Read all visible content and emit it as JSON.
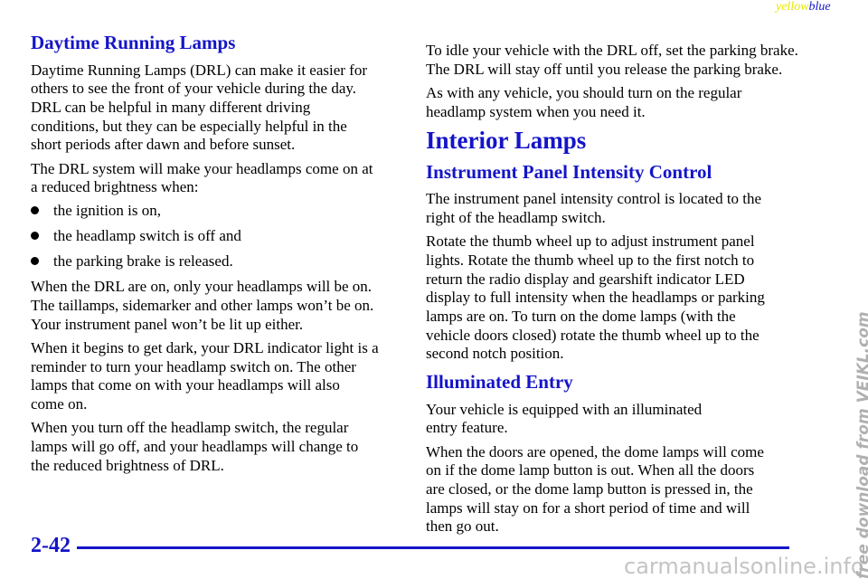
{
  "header": {
    "word_1": "yellow",
    "word_2": "blue"
  },
  "left": [
    {
      "kind": "h2",
      "text": "Daytime Running Lamps"
    },
    {
      "kind": "p",
      "lines": [
        "Daytime Running Lamps (DRL) can make it easier for",
        "others to see the front of your vehicle during the day.",
        "DRL can be helpful in many different driving",
        "conditions, but they can be especially helpful in the",
        "short periods after dawn and before sunset."
      ]
    },
    {
      "kind": "p",
      "lines": [
        "The DRL system will make your headlamps come on at",
        "a reduced brightness when:"
      ]
    },
    {
      "kind": "bullet",
      "lines": [
        "the ignition is on,"
      ]
    },
    {
      "kind": "bullet",
      "lines": [
        "the headlamp switch is off and"
      ]
    },
    {
      "kind": "bullet",
      "lines": [
        "the parking brake is released."
      ]
    },
    {
      "kind": "p",
      "lines": [
        "When the DRL are on, only your headlamps will be on.",
        "The taillamps, sidemarker and other lamps won’t be on.",
        "Your instrument panel won’t be lit up either."
      ]
    },
    {
      "kind": "p",
      "lines": [
        "When it begins to get dark, your DRL indicator light is a",
        "reminder to turn your headlamp switch on. The other",
        "lamps that come on with your headlamps will also",
        "come on."
      ]
    },
    {
      "kind": "p",
      "lines": [
        "When you turn off the headlamp switch, the regular",
        "lamps will go off, and your headlamps will change to",
        "the reduced brightness of DRL."
      ]
    }
  ],
  "right": [
    {
      "kind": "p",
      "lines": [
        "To idle your vehicle with the DRL off, set the parking brake.",
        "The DRL will stay off until you release the parking brake."
      ]
    },
    {
      "kind": "p",
      "lines": [
        "As with any vehicle, you should turn on the regular",
        "headlamp system when you need it."
      ]
    },
    {
      "kind": "h1",
      "text": "Interior Lamps"
    },
    {
      "kind": "h2",
      "text": "Instrument Panel Intensity Control"
    },
    {
      "kind": "p",
      "lines": [
        "The instrument panel intensity control is located to the",
        "right of the headlamp switch."
      ]
    },
    {
      "kind": "p",
      "lines": [
        "Rotate the thumb wheel up to adjust instrument panel",
        "lights. Rotate the thumb wheel up to the first notch to",
        "return the radio display and gearshift indicator LED",
        "display to full intensity when the headlamps or parking",
        "lamps are on. To turn on the dome lamps (with the",
        "vehicle doors closed) rotate the thumb wheel up to the",
        "second notch position."
      ]
    },
    {
      "kind": "h2",
      "text": "Illuminated Entry"
    },
    {
      "kind": "p",
      "lines": [
        "Your vehicle is equipped with an illuminated",
        "entry feature."
      ]
    },
    {
      "kind": "p",
      "lines": [
        "When the doors are opened, the dome lamps will come",
        "on if the dome lamp button is out. When all the doors",
        "are closed, or the dome lamp button is pressed in, the",
        "lamps will stay on for a short period of time and will",
        "then go out."
      ]
    }
  ],
  "footer": {
    "page_number": "2-42",
    "site": "carmanualsonline.info",
    "watermark": "free download from VEIKL.com"
  }
}
